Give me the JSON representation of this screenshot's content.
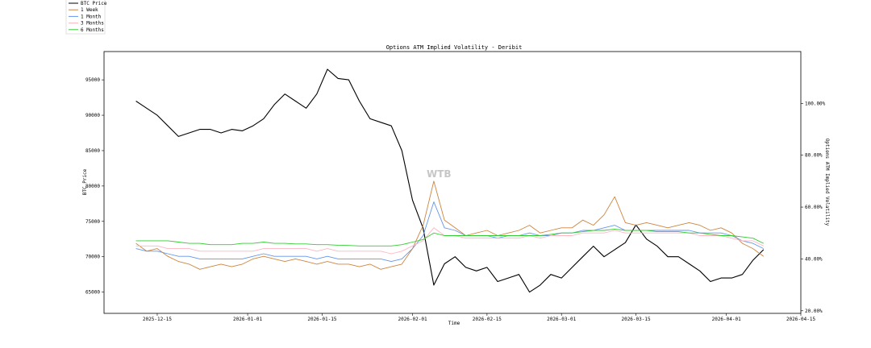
{
  "chart_data": {
    "type": "line",
    "title": "Options ATM Implied Volatility - Deribit",
    "xlabel": "Time",
    "ylabel_left": "BTC Price",
    "ylabel_right": "Options ATM Implied Volatility",
    "watermark": "WTB",
    "x_ticks": [
      "2025-12-15",
      "2026-01-01",
      "2026-01-15",
      "2026-02-01",
      "2026-02-15",
      "2026-03-01",
      "2026-03-15",
      "2026-04-01",
      "2026-04-15"
    ],
    "y_left_ticks": [
      "65000",
      "70000",
      "75000",
      "80000",
      "85000",
      "90000",
      "95000"
    ],
    "y_right_ticks": [
      "20.00%",
      "40.00%",
      "60.00%",
      "80.00%",
      "100.00%"
    ],
    "ylim_left": [
      62000,
      99000
    ],
    "ylim_right": [
      19,
      120
    ],
    "xlim": [
      "2025-12-05",
      "2026-04-15"
    ],
    "legend_position": "top-left (outside plot)",
    "grid": false,
    "x": [
      "2025-12-11",
      "2025-12-13",
      "2025-12-15",
      "2025-12-17",
      "2025-12-19",
      "2025-12-21",
      "2025-12-23",
      "2025-12-25",
      "2025-12-27",
      "2025-12-29",
      "2025-12-31",
      "2026-01-02",
      "2026-01-04",
      "2026-01-06",
      "2026-01-08",
      "2026-01-10",
      "2026-01-12",
      "2026-01-14",
      "2026-01-16",
      "2026-01-18",
      "2026-01-20",
      "2026-01-22",
      "2026-01-24",
      "2026-01-26",
      "2026-01-28",
      "2026-01-30",
      "2026-02-01",
      "2026-02-03",
      "2026-02-05",
      "2026-02-07",
      "2026-02-09",
      "2026-02-11",
      "2026-02-13",
      "2026-02-15",
      "2026-02-17",
      "2026-02-19",
      "2026-02-21",
      "2026-02-23",
      "2026-02-25",
      "2026-02-27",
      "2026-03-01",
      "2026-03-03",
      "2026-03-05",
      "2026-03-07",
      "2026-03-09",
      "2026-03-11",
      "2026-03-13",
      "2026-03-15",
      "2026-03-17",
      "2026-03-19",
      "2026-03-21",
      "2026-03-23",
      "2026-03-25",
      "2026-03-27",
      "2026-03-29",
      "2026-03-31",
      "2026-04-02",
      "2026-04-04",
      "2026-04-06",
      "2026-04-08"
    ],
    "series": [
      {
        "name": "BTC Price",
        "axis": "left",
        "color": "#000000",
        "values": [
          92000,
          91000,
          90000,
          88500,
          87000,
          87500,
          88000,
          88000,
          87500,
          88000,
          87800,
          88500,
          89500,
          91500,
          93000,
          92000,
          91000,
          93000,
          96500,
          95200,
          95000,
          92000,
          89500,
          89000,
          88500,
          85000,
          78000,
          74000,
          66000,
          69000,
          70000,
          68500,
          68000,
          68500,
          66500,
          67000,
          67500,
          65000,
          66000,
          67500,
          67000,
          68500,
          70000,
          71500,
          70000,
          71000,
          72000,
          74500,
          72500,
          71500,
          70000,
          70000,
          69000,
          68000,
          66500,
          67000,
          67000,
          67500,
          69500,
          71000
        ]
      },
      {
        "name": "1 Week",
        "axis": "right",
        "color": "#cd853f",
        "values": [
          46,
          43,
          44,
          41,
          39,
          38,
          36,
          37,
          38,
          37,
          38,
          40,
          41,
          40,
          39,
          40,
          39,
          38,
          39,
          38,
          38,
          37,
          38,
          36,
          37,
          38,
          44,
          53,
          70,
          55,
          52,
          49,
          50,
          51,
          49,
          50,
          51,
          53,
          50,
          51,
          52,
          52,
          55,
          53,
          57,
          64,
          54,
          53,
          54,
          53,
          52,
          53,
          54,
          53,
          51,
          52,
          50,
          46,
          44,
          41
        ]
      },
      {
        "name": "1 Month",
        "axis": "right",
        "color": "#6495ed",
        "values": [
          44,
          43,
          43,
          42,
          41,
          41,
          40,
          40,
          40,
          40,
          40,
          41,
          42,
          41,
          41,
          41,
          41,
          40,
          41,
          40,
          40,
          40,
          40,
          40,
          39,
          40,
          44,
          49,
          62,
          52,
          51,
          49,
          49,
          49,
          48,
          49,
          49,
          50,
          49,
          49,
          50,
          50,
          51,
          51,
          52,
          53,
          51,
          51,
          51,
          51,
          51,
          51,
          51,
          50,
          50,
          50,
          49,
          47,
          46,
          44
        ]
      },
      {
        "name": "3 Months",
        "axis": "right",
        "color": "#ffb6c1",
        "values": [
          45,
          45,
          45,
          44,
          44,
          44,
          43,
          43,
          43,
          43,
          43,
          43,
          44,
          44,
          44,
          44,
          44,
          43,
          44,
          43,
          43,
          43,
          43,
          43,
          42,
          43,
          45,
          47,
          52,
          49,
          49,
          48,
          48,
          48,
          48,
          48,
          48,
          49,
          48,
          49,
          49,
          49,
          50,
          50,
          50,
          51,
          50,
          50,
          50,
          50,
          50,
          50,
          50,
          49,
          49,
          49,
          48,
          47,
          47,
          45
        ]
      },
      {
        "name": "6 Months",
        "axis": "right",
        "color": "#32cd32",
        "values": [
          47,
          47,
          47,
          47,
          46.5,
          46,
          46,
          45.5,
          45.5,
          45.5,
          46,
          46,
          46.5,
          46,
          46,
          45.8,
          45.8,
          45.5,
          45.5,
          45.3,
          45.2,
          45,
          45,
          45,
          45,
          45.5,
          46.5,
          47.5,
          50,
          49,
          49,
          49,
          49,
          49,
          49,
          49,
          49,
          49,
          49,
          49.5,
          50,
          50,
          50.5,
          51,
          51,
          51.5,
          51,
          51,
          51,
          50.5,
          50.5,
          50.5,
          50,
          50,
          49.5,
          49,
          49,
          48.5,
          48,
          46
        ]
      }
    ]
  }
}
